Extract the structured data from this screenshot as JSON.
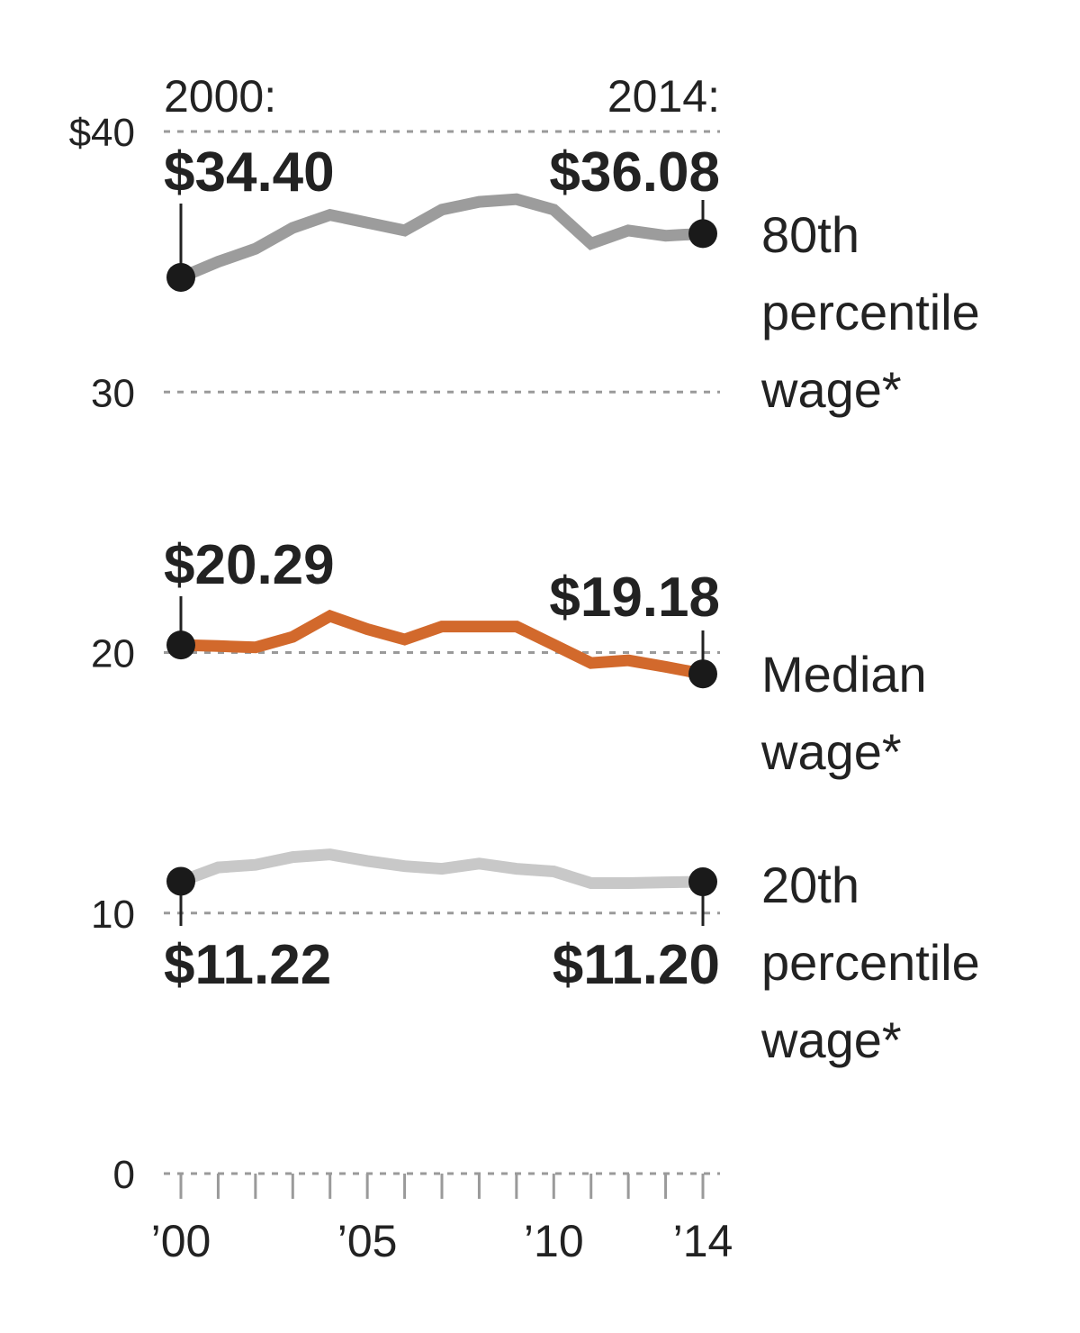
{
  "colors": {
    "p80": "#9c9c9c",
    "median": "#d2692c",
    "p20": "#c8c8c8",
    "text": "#222222",
    "grid": "#9a9a9a"
  },
  "labels": {
    "year_start": "2000:",
    "year_end": "2014:",
    "p80_start": "$34.40",
    "p80_end": "$36.08",
    "median_start": "$20.29",
    "median_end": "$19.18",
    "p20_start": "$11.22",
    "p20_end": "$11.20"
  },
  "chart_data": {
    "type": "line",
    "title": "",
    "xlabel": "",
    "ylabel": "",
    "xlim": [
      2000,
      2014
    ],
    "ylim": [
      0,
      40
    ],
    "yticks": [
      0,
      10,
      20,
      30,
      40
    ],
    "ytick_labels": [
      "0",
      "10",
      "20",
      "30",
      "$40"
    ],
    "xticks": [
      2000,
      2005,
      2010,
      2014
    ],
    "xtick_labels": [
      "’00",
      "’05",
      "’10",
      "’14"
    ],
    "grid": true,
    "x": [
      2000,
      2001,
      2002,
      2003,
      2004,
      2005,
      2006,
      2007,
      2008,
      2009,
      2010,
      2011,
      2012,
      2013,
      2014
    ],
    "series": [
      {
        "key": "p80",
        "name_lines": [
          "80th",
          "percentile",
          "wage*"
        ],
        "values": [
          34.4,
          35.0,
          35.5,
          36.3,
          36.8,
          36.5,
          36.2,
          37.0,
          37.3,
          37.4,
          37.0,
          35.7,
          36.2,
          36.0,
          36.08
        ]
      },
      {
        "key": "median",
        "name_lines": [
          "Median",
          "wage*"
        ],
        "values": [
          20.29,
          20.25,
          20.2,
          20.6,
          21.4,
          20.9,
          20.5,
          21.0,
          21.0,
          21.0,
          20.3,
          19.6,
          19.7,
          19.45,
          19.18
        ]
      },
      {
        "key": "p20",
        "name_lines": [
          "20th",
          "percentile",
          "wage*"
        ],
        "values": [
          11.22,
          11.75,
          11.85,
          12.15,
          12.25,
          12.0,
          11.8,
          11.7,
          11.9,
          11.7,
          11.6,
          11.15,
          11.15,
          11.18,
          11.2
        ]
      }
    ]
  }
}
